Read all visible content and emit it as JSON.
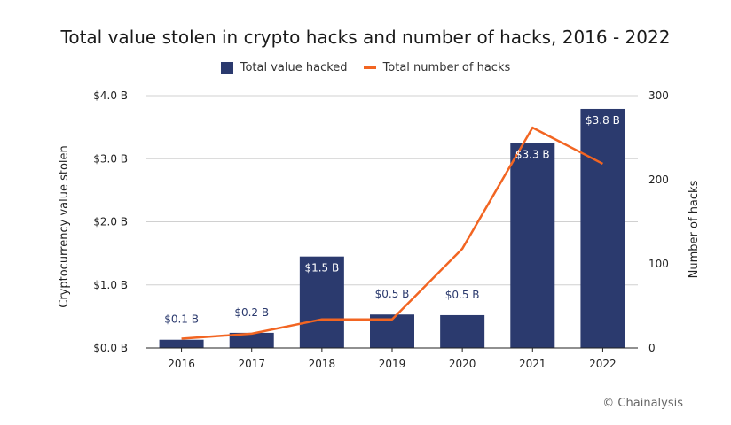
{
  "chart_data": {
    "type": "bar+line",
    "title": "Total value stolen in crypto hacks and number of hacks, 2016 - 2022",
    "categories": [
      "2016",
      "2017",
      "2018",
      "2019",
      "2020",
      "2021",
      "2022"
    ],
    "series": [
      {
        "name": "Total value hacked",
        "type": "bar",
        "axis": "left",
        "values": [
          0.13,
          0.24,
          1.45,
          0.53,
          0.52,
          3.25,
          3.79
        ],
        "data_labels": [
          "$0.1 B",
          "$0.2 B",
          "$1.5 B",
          "$0.5 B",
          "$0.5 B",
          "$3.3 B",
          "$3.8 B"
        ],
        "color": "#2b3a6e"
      },
      {
        "name": "Total number of hacks",
        "type": "line",
        "axis": "right",
        "values": [
          11,
          17,
          34,
          34,
          118,
          262,
          219
        ],
        "color": "#f26522"
      }
    ],
    "ylabel_left": "Cryptocurrency value stolen",
    "ylabel_right": "Number of hacks",
    "ylim_left": [
      0,
      4
    ],
    "ylim_right": [
      0,
      300
    ],
    "yticks_left": [
      "$0.0 B",
      "$1.0 B",
      "$2.0 B",
      "$3.0 B",
      "$4.0 B"
    ],
    "yticks_right": [
      "0",
      "100",
      "200",
      "300"
    ],
    "grid": true,
    "legend_position": "top-center"
  },
  "credit": "© Chainalysis"
}
